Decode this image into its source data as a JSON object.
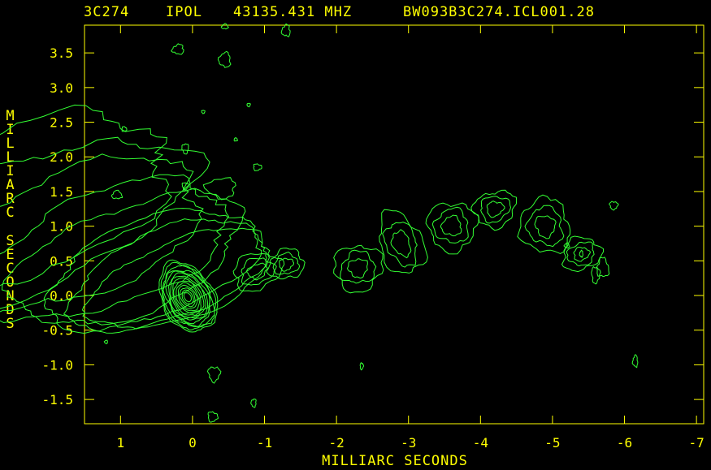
{
  "header": {
    "source": "3C274",
    "stokes": "IPOL",
    "frequency": "43135.431 MHZ",
    "file": "BW093B3C274.ICL001.28"
  },
  "axes": {
    "xlabel": "MILLIARC SECONDS",
    "ylabel": "MILLIARC SECONDS",
    "x_ticks": [
      "1",
      "0",
      "-1",
      "-2",
      "-3",
      "-4",
      "-5",
      "-6",
      "-7"
    ],
    "y_ticks": [
      "3.5",
      "3.0",
      "2.5",
      "2.0",
      "1.5",
      "1.0",
      "0.5",
      "0.0",
      "-0.5",
      "-1.0",
      "-1.5"
    ]
  },
  "colors": {
    "labels": "#ffff00",
    "contours": "#33ff33",
    "background": "#000000"
  },
  "chart_data": {
    "type": "contour",
    "title": "3C274 IPOL 43135.431 MHZ BW093B3C274.ICL001.28",
    "xlabel": "MILLIARC SECONDS",
    "ylabel": "MILLIARC SECONDS",
    "xlim": [
      1.5,
      -7.1
    ],
    "ylim": [
      -1.85,
      3.9
    ],
    "core_position": [
      0.0,
      0.0
    ],
    "jet_direction": "extends from core toward negative x and positive y (west-north-west)",
    "contour_count_approx": 20
  }
}
